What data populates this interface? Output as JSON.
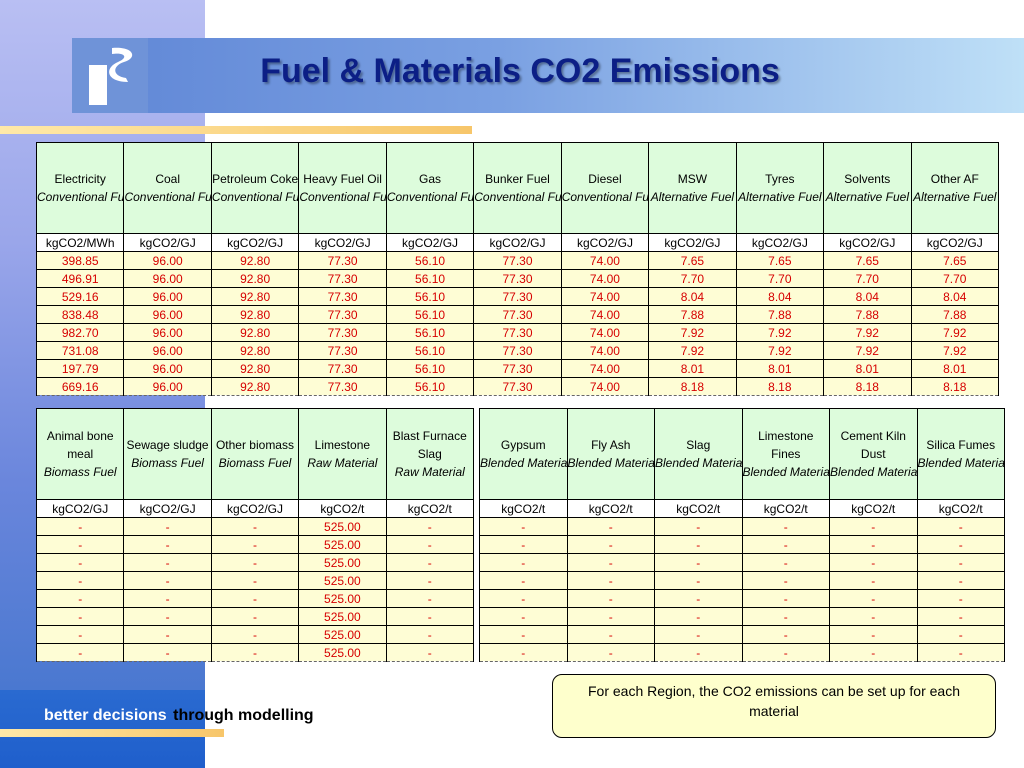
{
  "title": "Fuel & Materials CO2 Emissions",
  "tagline": {
    "a": "better decisions",
    "b": "through modelling"
  },
  "note": "For each Region, the CO2 emissions can be set up for each material",
  "table1": {
    "headers": [
      {
        "name": "Electricity",
        "type": "Conventional Fuel",
        "unit": "kgCO2/MWh"
      },
      {
        "name": "Coal",
        "type": "Conventional Fuel",
        "unit": "kgCO2/GJ"
      },
      {
        "name": "Petroleum Coke",
        "type": "Conventional Fuel",
        "unit": "kgCO2/GJ"
      },
      {
        "name": "Heavy Fuel Oil",
        "type": "Conventional Fuel",
        "unit": "kgCO2/GJ"
      },
      {
        "name": "Gas",
        "type": "Conventional Fuel",
        "unit": "kgCO2/GJ"
      },
      {
        "name": "Bunker Fuel",
        "type": "Conventional Fuel",
        "unit": "kgCO2/GJ"
      },
      {
        "name": "Diesel",
        "type": "Conventional Fuel",
        "unit": "kgCO2/GJ"
      },
      {
        "name": "MSW",
        "type": "Alternative Fuel",
        "unit": "kgCO2/GJ"
      },
      {
        "name": "Tyres",
        "type": "Alternative Fuel",
        "unit": "kgCO2/GJ"
      },
      {
        "name": "Solvents",
        "type": "Alternative Fuel",
        "unit": "kgCO2/GJ"
      },
      {
        "name": "Other AF",
        "type": "Alternative Fuel",
        "unit": "kgCO2/GJ"
      }
    ],
    "rows": [
      [
        "398.85",
        "96.00",
        "92.80",
        "77.30",
        "56.10",
        "77.30",
        "74.00",
        "7.65",
        "7.65",
        "7.65",
        "7.65"
      ],
      [
        "496.91",
        "96.00",
        "92.80",
        "77.30",
        "56.10",
        "77.30",
        "74.00",
        "7.70",
        "7.70",
        "7.70",
        "7.70"
      ],
      [
        "529.16",
        "96.00",
        "92.80",
        "77.30",
        "56.10",
        "77.30",
        "74.00",
        "8.04",
        "8.04",
        "8.04",
        "8.04"
      ],
      [
        "838.48",
        "96.00",
        "92.80",
        "77.30",
        "56.10",
        "77.30",
        "74.00",
        "7.88",
        "7.88",
        "7.88",
        "7.88"
      ],
      [
        "982.70",
        "96.00",
        "92.80",
        "77.30",
        "56.10",
        "77.30",
        "74.00",
        "7.92",
        "7.92",
        "7.92",
        "7.92"
      ],
      [
        "731.08",
        "96.00",
        "92.80",
        "77.30",
        "56.10",
        "77.30",
        "74.00",
        "7.92",
        "7.92",
        "7.92",
        "7.92"
      ],
      [
        "197.79",
        "96.00",
        "92.80",
        "77.30",
        "56.10",
        "77.30",
        "74.00",
        "8.01",
        "8.01",
        "8.01",
        "8.01"
      ],
      [
        "669.16",
        "96.00",
        "92.80",
        "77.30",
        "56.10",
        "77.30",
        "74.00",
        "8.18",
        "8.18",
        "8.18",
        "8.18"
      ]
    ]
  },
  "table2": {
    "headers": [
      {
        "name": "Animal bone meal",
        "type": "Biomass Fuel",
        "unit": "kgCO2/GJ"
      },
      {
        "name": "Sewage sludge",
        "type": "Biomass Fuel",
        "unit": "kgCO2/GJ"
      },
      {
        "name": "Other biomass",
        "type": "Biomass Fuel",
        "unit": "kgCO2/GJ"
      },
      {
        "name": "Limestone",
        "type": "Raw Material",
        "unit": "kgCO2/t"
      },
      {
        "name": "Blast Furnace Slag",
        "type": "Raw Material",
        "unit": "kgCO2/t"
      }
    ],
    "rows": [
      [
        "-",
        "-",
        "-",
        "525.00",
        "-"
      ],
      [
        "-",
        "-",
        "-",
        "525.00",
        "-"
      ],
      [
        "-",
        "-",
        "-",
        "525.00",
        "-"
      ],
      [
        "-",
        "-",
        "-",
        "525.00",
        "-"
      ],
      [
        "-",
        "-",
        "-",
        "525.00",
        "-"
      ],
      [
        "-",
        "-",
        "-",
        "525.00",
        "-"
      ],
      [
        "-",
        "-",
        "-",
        "525.00",
        "-"
      ],
      [
        "-",
        "-",
        "-",
        "525.00",
        "-"
      ]
    ]
  },
  "table3": {
    "headers": [
      {
        "name": "Gypsum",
        "type": "Blended Material",
        "unit": "kgCO2/t"
      },
      {
        "name": "Fly Ash",
        "type": "Blended Material",
        "unit": "kgCO2/t"
      },
      {
        "name": "Slag",
        "type": "Blended Material",
        "unit": "kgCO2/t"
      },
      {
        "name": "Limestone Fines",
        "type": "Blended Material",
        "unit": "kgCO2/t"
      },
      {
        "name": "Cement Kiln Dust",
        "type": "Blended Material",
        "unit": "kgCO2/t"
      },
      {
        "name": "Silica Fumes",
        "type": "Blended Material",
        "unit": "kgCO2/t"
      }
    ],
    "rows": [
      [
        "-",
        "-",
        "-",
        "-",
        "-",
        "-"
      ],
      [
        "-",
        "-",
        "-",
        "-",
        "-",
        "-"
      ],
      [
        "-",
        "-",
        "-",
        "-",
        "-",
        "-"
      ],
      [
        "-",
        "-",
        "-",
        "-",
        "-",
        "-"
      ],
      [
        "-",
        "-",
        "-",
        "-",
        "-",
        "-"
      ],
      [
        "-",
        "-",
        "-",
        "-",
        "-",
        "-"
      ],
      [
        "-",
        "-",
        "-",
        "-",
        "-",
        "-"
      ],
      [
        "-",
        "-",
        "-",
        "-",
        "-",
        "-"
      ]
    ]
  }
}
